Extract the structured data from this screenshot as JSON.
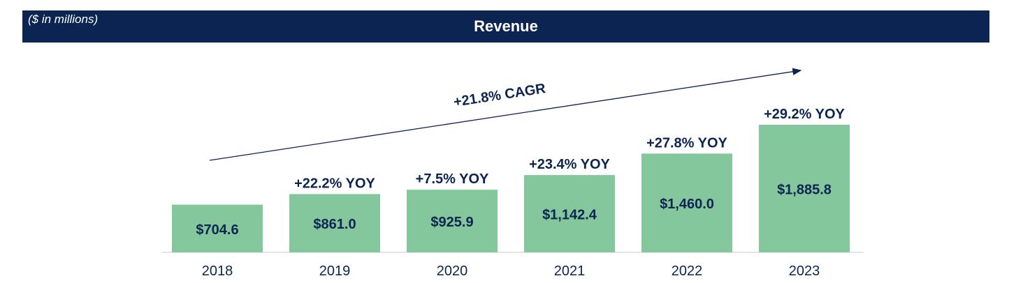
{
  "header": {
    "units": "($ in millions)",
    "title": "Revenue"
  },
  "colors": {
    "header_bg": "#0c2452",
    "bar": "#85c79c",
    "text": "#0c2452"
  },
  "chart_data": {
    "type": "bar",
    "title": "Revenue",
    "ylabel": "($ in millions)",
    "xlabel": "",
    "categories": [
      "2018",
      "2019",
      "2020",
      "2021",
      "2022",
      "2023"
    ],
    "values": [
      704.6,
      861.0,
      925.9,
      1142.4,
      1460.0,
      1885.8
    ],
    "value_labels": [
      "$704.6",
      "$861.0",
      "$925.9",
      "$1,142.4",
      "$1,460.0",
      "$1,885.8"
    ],
    "yoy_labels": [
      "",
      "+22.2% YOY",
      "+7.5% YOY",
      "+23.4% YOY",
      "+27.8% YOY",
      "+29.2% YOY"
    ],
    "annotation": "+21.8% CAGR",
    "ylim": [
      0,
      1885.8
    ],
    "grid": false
  }
}
